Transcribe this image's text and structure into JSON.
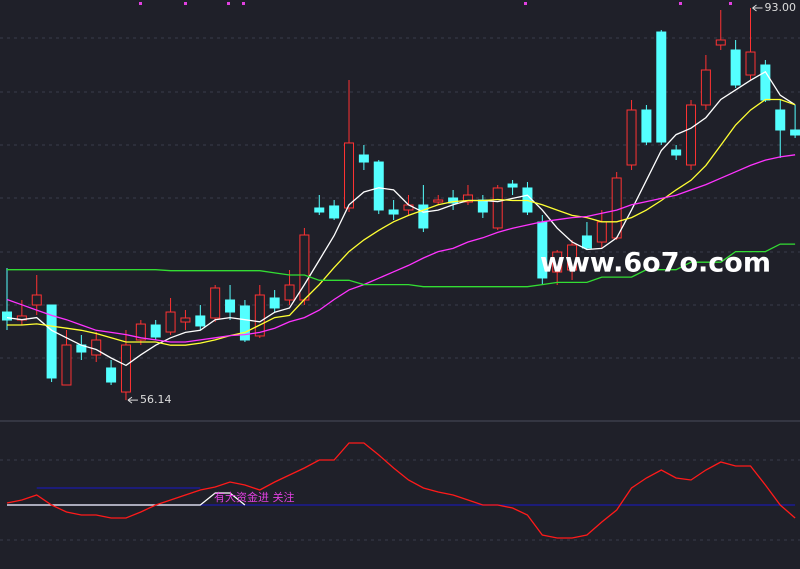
{
  "chart_data": [
    {
      "type": "candlestick",
      "ylim": [
        54.27,
        93.75
      ],
      "up_color": "#ff3232",
      "down_color": "#54ffff",
      "open": [
        64.42,
        63.67,
        65.08,
        65.08,
        57.56,
        61.32,
        60.38,
        59.16,
        56.9,
        61.79,
        63.2,
        62.54,
        63.48,
        64.05,
        63.86,
        65.55,
        64.99,
        62.17,
        65.74,
        65.55,
        65.55,
        74.2,
        74.39,
        74.2,
        79.18,
        78.52,
        74.01,
        74.01,
        74.48,
        74.76,
        75.14,
        74.76,
        74.95,
        72.32,
        76.45,
        76.08,
        72.88,
        68.18,
        68.37,
        71.57,
        71.0,
        71.38,
        78.24,
        83.41,
        90.74,
        79.65,
        78.24,
        83.88,
        89.52,
        89.05,
        86.7,
        87.64,
        83.41,
        81.53
      ],
      "high": [
        68.56,
        65.55,
        67.9,
        65.08,
        62.73,
        62.26,
        62.54,
        59.91,
        62.73,
        63.67,
        63.67,
        65.74,
        64.61,
        65.08,
        66.96,
        66.96,
        65.55,
        66.96,
        66.49,
        68.37,
        72.32,
        75.42,
        74.95,
        86.23,
        80.12,
        78.71,
        74.95,
        75.42,
        76.36,
        75.42,
        75.89,
        76.36,
        75.42,
        76.36,
        76.83,
        76.64,
        73.54,
        70.25,
        71.19,
        72.88,
        74.01,
        77.58,
        84.35,
        83.88,
        90.93,
        80.12,
        84.35,
        88.58,
        92.81,
        89.99,
        93.0,
        88.11,
        84.35,
        83.88
      ],
      "low": [
        62.73,
        63.2,
        64.14,
        57.84,
        57.56,
        59.91,
        59.72,
        57.56,
        56.14,
        61.32,
        61.79,
        62.26,
        62.73,
        62.73,
        63.48,
        63.67,
        61.6,
        61.98,
        64.42,
        65.08,
        65.08,
        73.54,
        73.07,
        73.82,
        77.77,
        73.63,
        73.07,
        73.54,
        71.94,
        74.48,
        74.01,
        74.48,
        73.26,
        72.13,
        75.42,
        73.54,
        66.96,
        66.96,
        67.43,
        70.25,
        70.44,
        71.19,
        77.77,
        80.12,
        80.12,
        78.71,
        77.77,
        83.41,
        89.05,
        85.48,
        86.23,
        84.16,
        78.9,
        80.78
      ],
      "close": [
        63.67,
        64.05,
        66.02,
        58.22,
        61.32,
        60.66,
        61.79,
        57.84,
        61.32,
        63.29,
        62.07,
        64.42,
        63.86,
        63.11,
        66.68,
        64.42,
        61.79,
        66.02,
        64.8,
        66.96,
        71.66,
        73.82,
        73.26,
        80.31,
        78.52,
        74.01,
        73.63,
        74.48,
        72.32,
        74.95,
        74.67,
        75.42,
        73.82,
        76.08,
        76.17,
        73.82,
        67.62,
        70.06,
        70.72,
        70.44,
        72.88,
        77.02,
        83.41,
        80.4,
        80.4,
        79.18,
        83.88,
        87.17,
        89.99,
        85.76,
        88.86,
        84.35,
        81.53,
        81.06
      ],
      "series": [
        {
          "color": "#ffffff",
          "values": [
            63.9,
            63.7,
            63.9,
            62.7,
            62.0,
            61.3,
            60.9,
            60.1,
            59.4,
            60.4,
            61.3,
            62.0,
            62.5,
            62.7,
            63.7,
            63.9,
            63.7,
            63.5,
            64.4,
            64.8,
            67.0,
            69.3,
            71.6,
            74.5,
            75.7,
            76.1,
            75.9,
            74.5,
            73.8,
            74.0,
            74.5,
            74.9,
            74.9,
            74.8,
            75.1,
            75.4,
            74.0,
            72.3,
            71.0,
            70.3,
            70.4,
            71.4,
            74.0,
            76.8,
            79.6,
            81.1,
            81.7,
            82.7,
            84.4,
            85.3,
            86.2,
            87.0,
            84.8,
            83.9
          ]
        },
        {
          "color": "#ffff33",
          "values": [
            63.2,
            63.2,
            63.3,
            63.1,
            62.9,
            62.7,
            62.4,
            62.0,
            61.6,
            61.6,
            61.6,
            61.3,
            61.3,
            61.5,
            61.8,
            62.2,
            62.5,
            63.2,
            63.9,
            64.1,
            65.6,
            67.0,
            68.6,
            70.1,
            71.2,
            72.1,
            72.9,
            73.5,
            74.0,
            74.5,
            74.8,
            74.9,
            74.9,
            75.0,
            74.9,
            74.9,
            74.5,
            74.0,
            73.5,
            73.3,
            72.9,
            72.9,
            73.3,
            74.0,
            74.9,
            75.9,
            76.8,
            78.2,
            80.1,
            82.0,
            83.4,
            84.4,
            84.4,
            83.9
          ]
        },
        {
          "color": "#ff33ff",
          "values": [
            65.6,
            65.1,
            64.6,
            64.1,
            63.7,
            63.2,
            62.7,
            62.5,
            62.3,
            62.0,
            61.8,
            61.6,
            61.6,
            61.8,
            62.0,
            62.2,
            62.3,
            62.5,
            62.9,
            63.5,
            63.9,
            64.6,
            65.6,
            66.5,
            67.0,
            67.6,
            68.2,
            68.8,
            69.5,
            70.1,
            70.4,
            71.0,
            71.4,
            71.9,
            72.3,
            72.6,
            72.9,
            73.1,
            73.3,
            73.4,
            73.7,
            74.0,
            74.5,
            74.8,
            75.1,
            75.4,
            75.9,
            76.4,
            77.0,
            77.6,
            78.2,
            78.7,
            79.0,
            79.2
          ]
        },
        {
          "color": "#33dd33",
          "values": [
            68.4,
            68.4,
            68.4,
            68.4,
            68.4,
            68.4,
            68.4,
            68.4,
            68.4,
            68.4,
            68.4,
            68.3,
            68.3,
            68.3,
            68.3,
            68.3,
            68.3,
            68.3,
            68.1,
            67.9,
            67.9,
            67.4,
            67.4,
            67.4,
            67.0,
            67.0,
            67.0,
            67.0,
            66.8,
            66.8,
            66.8,
            66.8,
            66.8,
            66.8,
            66.8,
            66.8,
            67.0,
            67.2,
            67.2,
            67.2,
            67.7,
            67.7,
            67.7,
            68.4,
            68.4,
            68.4,
            69.1,
            69.1,
            69.1,
            70.1,
            70.1,
            70.1,
            70.8,
            70.8
          ]
        }
      ],
      "annotations": [
        {
          "value": 93.0,
          "label": "93.00"
        },
        {
          "value": 56.14,
          "label": "56.14"
        }
      ]
    },
    {
      "type": "line",
      "ylim": [
        -64,
        85
      ],
      "series": [
        {
          "color": "#1a1aa8",
          "values": [
            0,
            0,
            0,
            0,
            0,
            0,
            0,
            0,
            0,
            0,
            0,
            0,
            0,
            0,
            0,
            0,
            0,
            0,
            0,
            0,
            0,
            0,
            0,
            0,
            0,
            0,
            0,
            0,
            0,
            0,
            0,
            0,
            0,
            0,
            0,
            0,
            0,
            0,
            0,
            0,
            0,
            0,
            0,
            0,
            0,
            0,
            0,
            0,
            0,
            0,
            0,
            0,
            0,
            0
          ]
        },
        {
          "color": "#1a1aa8",
          "values": [
            null,
            null,
            17,
            17,
            17,
            17,
            17,
            17,
            17,
            17,
            17,
            17,
            17,
            17,
            null,
            null,
            null,
            null,
            null,
            null,
            null,
            null,
            null,
            null,
            null,
            null,
            null,
            null,
            null,
            null,
            null,
            null,
            null,
            null,
            null,
            null,
            null,
            null,
            null,
            null,
            null,
            null,
            null,
            null,
            null,
            null,
            null,
            null,
            null,
            null,
            null,
            null,
            null,
            null
          ]
        },
        {
          "color": "#ffffff",
          "values": [
            0,
            0,
            0,
            0,
            0,
            0,
            0,
            0,
            0,
            0,
            0,
            0,
            0,
            0,
            12,
            12,
            0,
            null,
            null,
            null,
            null,
            null,
            null,
            null,
            null,
            null,
            null,
            null,
            null,
            null,
            null,
            null,
            null,
            null,
            null,
            null,
            null,
            null,
            null,
            null,
            null,
            null,
            null,
            null,
            null,
            null,
            null,
            null,
            null,
            null,
            null,
            null,
            null,
            null
          ]
        },
        {
          "color": "#ff1a1a",
          "values": [
            2,
            5,
            10,
            0,
            -7,
            -10,
            -10,
            -13,
            -13,
            -7,
            0,
            5,
            10,
            15,
            18,
            23,
            20,
            15,
            23,
            30,
            37,
            45,
            45,
            62,
            62,
            50,
            37,
            25,
            17,
            13,
            10,
            5,
            0,
            0,
            -3,
            -10,
            -30,
            -33,
            -33,
            -30,
            -17,
            -5,
            17,
            27,
            35,
            27,
            25,
            35,
            43,
            39,
            39,
            20,
            0,
            -13
          ]
        }
      ],
      "annotation": "有大资金进 关注"
    }
  ],
  "watermark": "www.6o7o.com"
}
